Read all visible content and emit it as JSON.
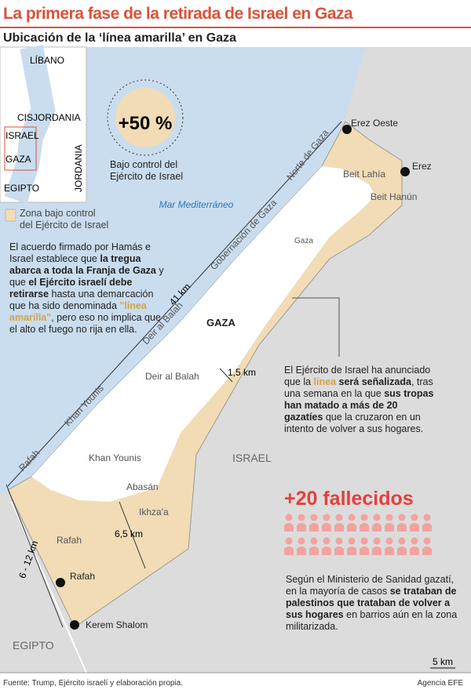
{
  "header": {
    "title": "La primera fase de la retirada de Israel en Gaza",
    "subtitle": "Ubicación de la ‘línea amarilla’ en Gaza"
  },
  "inset": {
    "labels": [
      "LÍBANO",
      "CISJORDANIA",
      "ISRAEL",
      "GAZA",
      "EGIPTO",
      "JORDANIA"
    ]
  },
  "stat": {
    "value": "+50 %",
    "label": "Bajo control del Ejército de Israel"
  },
  "legend": {
    "label": "Zona bajo control del Ejército de Israel"
  },
  "map": {
    "sea": "Mar Mediterráneo",
    "places": [
      "Erez Oeste",
      "Erez",
      "Beit Lahía",
      "Beit Hanún",
      "Gaza",
      "Norte de Gaza",
      "Gobernación de Gaza",
      "GAZA",
      "Deir al Balah",
      "Deir al Balah",
      "Khan Younis",
      "Khan Younis",
      "Rafah",
      "Abasán",
      "Ikhza'a",
      "Rafah",
      "Rafah",
      "Kerem Shalom",
      "ISRAEL",
      "EGIPTO"
    ],
    "distances": [
      "41 km",
      "1,5 km",
      "6,5 km",
      "6 - 12 km"
    ],
    "scale": "5 km"
  },
  "agreement": {
    "segments": [
      "El acuerdo firmado por Hamás e Israel establece que ",
      "la tregua abarca a toda la Franja de Gaza",
      " y que ",
      "el Ejército israelí debe retirarse",
      " hasta una demarcación que ha sido denominada ",
      "\"línea amarilla\"",
      ", pero eso no implica que el alto el fuego no rija en ella."
    ]
  },
  "announcement": {
    "segments": [
      "El Ejército de Israel ha anunciado que la ",
      "línea",
      " será señalizada",
      ", tras una semana en la que ",
      "sus tropas han matado a más de 20 gazatíes",
      " que la cruzaron en un intento de volver a sus hogares."
    ]
  },
  "casualties": {
    "title": "+20 fallecidos",
    "segments": [
      "Según el Ministerio de Sanidad gazatí, en la mayoría de casos ",
      "se trataban de palestinos que trataban de volver a sus hogares",
      " en barrios aún en la zona militarizada."
    ]
  },
  "footer": {
    "source": "Fuente: Trump, Ejército israelí y elaboración propia.",
    "agency": "Agencia EFE"
  }
}
